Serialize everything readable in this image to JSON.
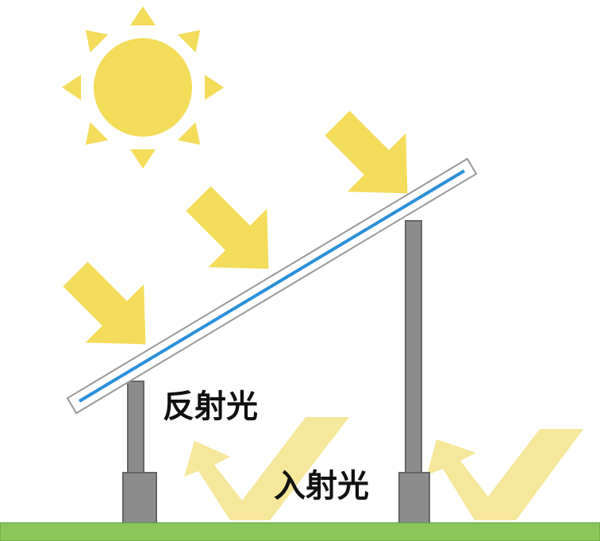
{
  "labels": {
    "reflected": "反射光",
    "incident": "入射光"
  }
}
